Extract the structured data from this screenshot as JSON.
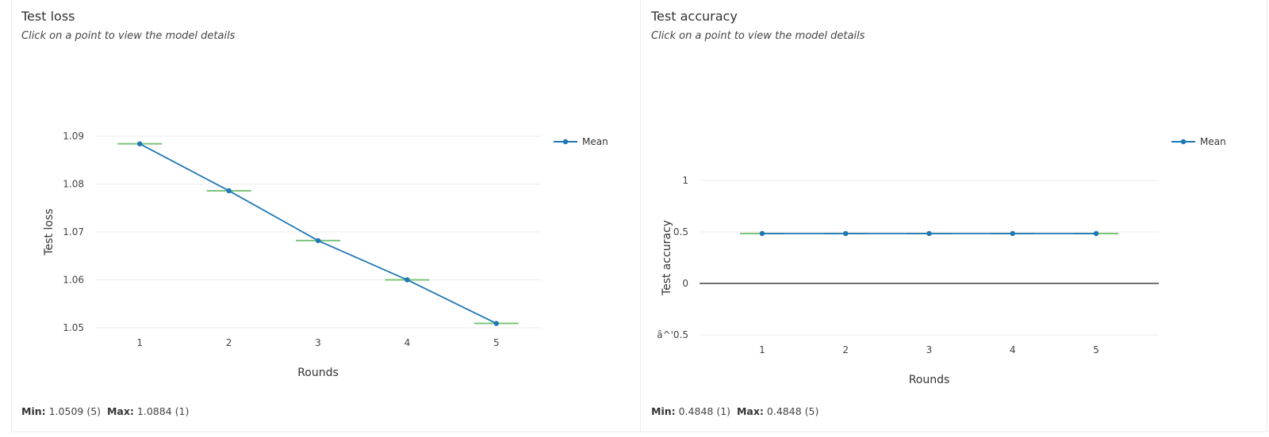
{
  "colors": {
    "series": "#1f77b4",
    "error_bar": "#7cc47a",
    "grid": "#eeeeee",
    "zero_line": "#444444"
  },
  "chart_data": [
    {
      "type": "line",
      "title": "Test loss",
      "subtitle": "Click on a point to view the model details",
      "xlabel": "Rounds",
      "ylabel": "Test loss",
      "x": [
        1,
        2,
        3,
        4,
        5
      ],
      "x_ticks": [
        "1",
        "2",
        "3",
        "4",
        "5"
      ],
      "y_ticks": [
        "1.05",
        "1.06",
        "1.07",
        "1.08",
        "1.09"
      ],
      "y_tick_values": [
        1.05,
        1.06,
        1.07,
        1.08,
        1.09
      ],
      "ylim": [
        1.05,
        1.09
      ],
      "xlim": [
        0.5,
        5.5
      ],
      "grid": true,
      "legend_position": "top-right",
      "series": [
        {
          "name": "Mean",
          "values": [
            1.0884,
            1.0786,
            1.0682,
            1.06,
            1.0509
          ]
        }
      ],
      "stats": {
        "min_label": "Min:",
        "min_value": "1.0509 (5)",
        "max_label": "Max:",
        "max_value": "1.0884 (1)"
      }
    },
    {
      "type": "line",
      "title": "Test accuracy",
      "subtitle": "Click on a point to view the model details",
      "xlabel": "Rounds",
      "ylabel": "Test accuracy",
      "x": [
        1,
        2,
        3,
        4,
        5
      ],
      "x_ticks": [
        "1",
        "2",
        "3",
        "4",
        "5"
      ],
      "y_ticks": [
        "â^'0.5",
        "0",
        "0.5",
        "1"
      ],
      "y_tick_values": [
        -0.5,
        0,
        0.5,
        1
      ],
      "ylim": [
        -0.5,
        1
      ],
      "xlim": [
        0.25,
        5.75
      ],
      "grid": true,
      "legend_position": "top-right",
      "series": [
        {
          "name": "Mean",
          "values": [
            0.4848,
            0.4848,
            0.4848,
            0.4848,
            0.4848
          ]
        }
      ],
      "stats": {
        "min_label": "Min:",
        "min_value": "0.4848 (1)",
        "max_label": "Max:",
        "max_value": "0.4848 (5)"
      }
    }
  ]
}
